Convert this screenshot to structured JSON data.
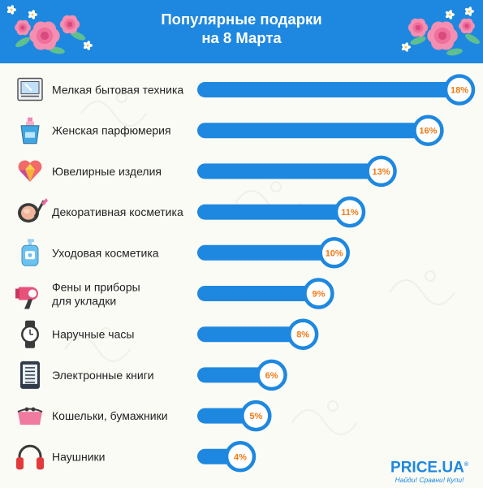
{
  "header": {
    "title_line1": "Популярные подарки",
    "title_line2": "на 8 Марта",
    "background": "#1e88e0"
  },
  "brand": {
    "name": "PRICE.UA",
    "registered_mark": "®",
    "slogan": "Найди! Сравни! Купи!"
  },
  "colors": {
    "bar": "#1e88e0",
    "circle_ring": "#1e88e0",
    "value_text": "#f07a16",
    "label_text": "#222222"
  },
  "chart_data": {
    "type": "bar",
    "orientation": "horizontal",
    "unit": "%",
    "categories": [
      [
        "Мелкая бытовая техника"
      ],
      [
        "Женская парфюмерия"
      ],
      [
        "Ювелирные изделия"
      ],
      [
        "Декоративная косметика"
      ],
      [
        "Уходовая косметика"
      ],
      [
        "Фены и приборы",
        "для укладки"
      ],
      [
        "Наручные часы"
      ],
      [
        "Электронные книги"
      ],
      [
        "Кошельки, бумажники"
      ],
      [
        "Наушники"
      ]
    ],
    "values": [
      18,
      16,
      13,
      11,
      10,
      9,
      8,
      6,
      5,
      4
    ],
    "value_labels": [
      "18%",
      "16%",
      "13%",
      "11%",
      "10%",
      "9%",
      "8%",
      "6%",
      "5%",
      "4%"
    ],
    "icons": [
      "microwave-icon",
      "perfume-icon",
      "jewelry-heart-icon",
      "compact-powder-icon",
      "lotion-bottle-icon",
      "hair-dryer-icon",
      "wristwatch-icon",
      "ebook-reader-icon",
      "purse-icon",
      "headphones-icon"
    ],
    "xlim": [
      0,
      18
    ],
    "grid": false,
    "legend": "none"
  }
}
